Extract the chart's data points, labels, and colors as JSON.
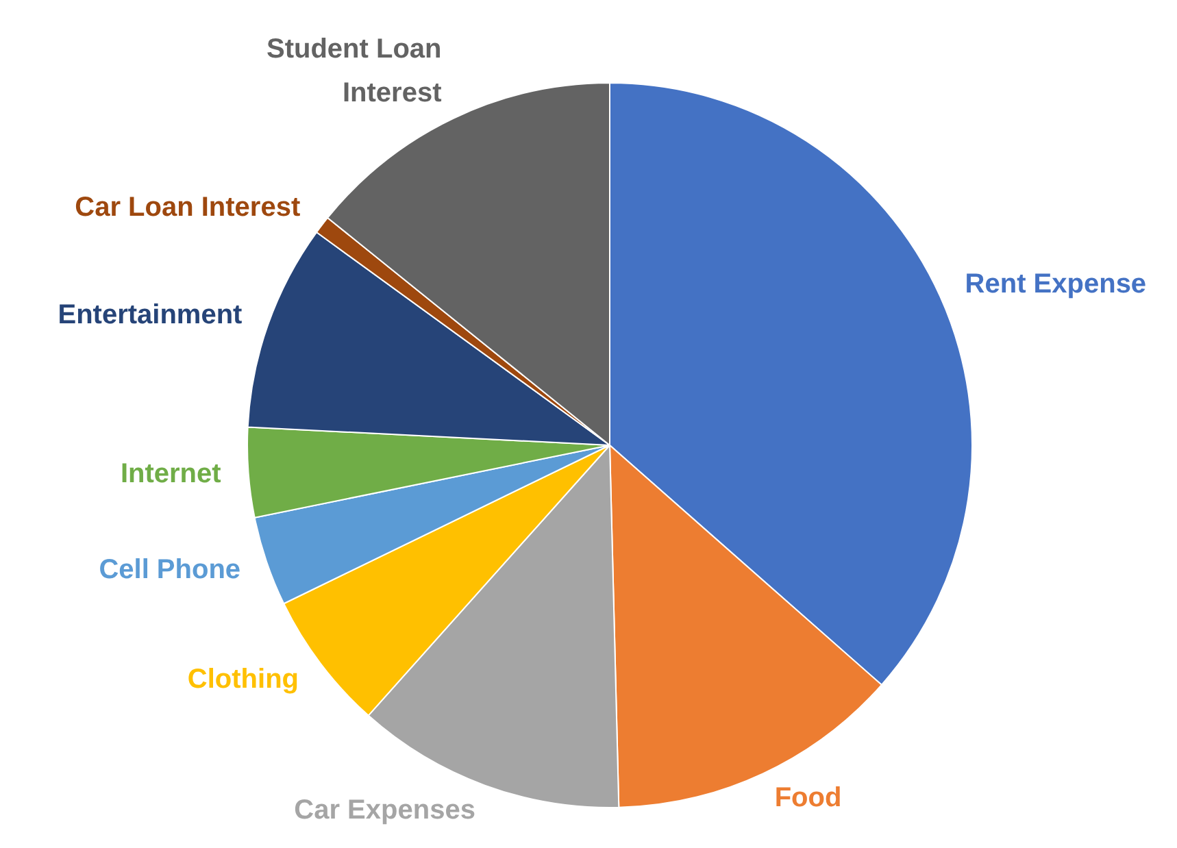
{
  "chart_data": {
    "type": "pie",
    "categories": [
      "Rent Expense",
      "Food",
      "Car Expenses",
      "Clothing",
      "Cell Phone",
      "Internet",
      "Entertainment",
      "Car Loan Interest",
      "Student Loan Interest"
    ],
    "values": [
      36.5,
      13.1,
      12.0,
      6.2,
      4.0,
      4.0,
      9.2,
      0.8,
      14.2
    ],
    "colors": [
      "#4472c4",
      "#ed7d31",
      "#a5a5a5",
      "#ffc000",
      "#5b9bd5",
      "#70ad47",
      "#264478",
      "#9e480e",
      "#636363"
    ],
    "legend": false
  }
}
